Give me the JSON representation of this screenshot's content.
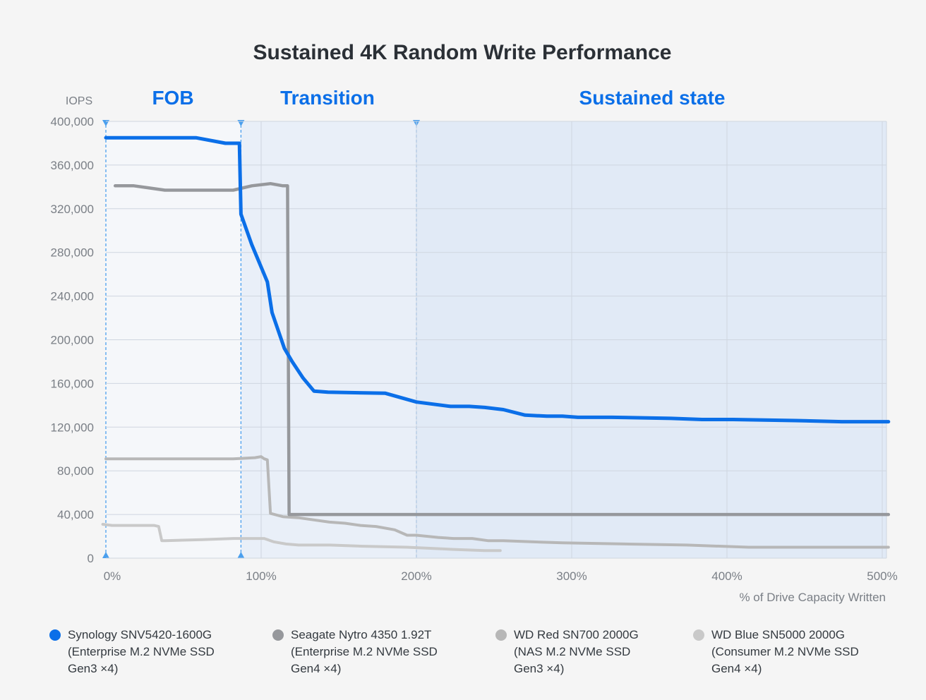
{
  "chart_data": {
    "type": "line",
    "title": "Sustained 4K Random Write Performance",
    "ylabel": "IOPS",
    "xlabel": "% of Drive Capacity Written",
    "xlim": [
      -4,
      504
    ],
    "ylim": [
      0,
      400000
    ],
    "x_ticks": [
      0,
      100,
      200,
      300,
      400,
      500
    ],
    "x_tick_labels": [
      "0%",
      "100%",
      "200%",
      "300%",
      "400%",
      "500%"
    ],
    "y_ticks": [
      0,
      40000,
      80000,
      120000,
      160000,
      200000,
      240000,
      280000,
      320000,
      360000,
      400000
    ],
    "y_tick_labels": [
      "0",
      "40,000",
      "80,000",
      "120,000",
      "160,000",
      "200,000",
      "240,000",
      "280,000",
      "320,000",
      "360,000",
      "400,000"
    ],
    "phases": [
      {
        "name": "FOB",
        "start": 0,
        "end": 87
      },
      {
        "name": "Transition",
        "start": 87,
        "end": 200
      },
      {
        "name": "Sustained state",
        "start": 200,
        "end": 504
      }
    ],
    "series": [
      {
        "name": "Synology SNV5420-1600G",
        "subtitle": [
          "(Enterprise M.2 NVMe SSD",
          "Gen3 ×4)"
        ],
        "color": "#0b6fe8",
        "x": [
          0,
          58,
          77,
          86,
          87,
          94,
          104,
          107,
          115,
          120,
          127,
          134,
          143,
          180,
          200,
          222,
          234,
          244,
          256,
          270,
          284,
          294,
          304,
          326,
          364,
          384,
          404,
          444,
          474,
          504
        ],
        "y": [
          385000,
          385000,
          380000,
          380000,
          315000,
          287000,
          253000,
          225000,
          192000,
          180000,
          165000,
          153000,
          152000,
          151000,
          143000,
          139000,
          139000,
          138000,
          136000,
          131000,
          130000,
          130000,
          129000,
          129000,
          128000,
          127000,
          127000,
          126000,
          125000,
          125000
        ]
      },
      {
        "name": "Seagate Nytro 4350 1.92T",
        "subtitle": [
          "(Enterprise M.2 NVMe SSD",
          "Gen4 ×4)"
        ],
        "color": "#96989c",
        "x": [
          6,
          18,
          28,
          38,
          82,
          94,
          106,
          114,
          117,
          118,
          125,
          504
        ],
        "y": [
          341000,
          341000,
          339000,
          337000,
          337000,
          341000,
          343000,
          341000,
          341000,
          40000,
          40000,
          40000
        ]
      },
      {
        "name": "WD Red SN700 2000G",
        "subtitle": [
          "(NAS M.2 NVMe SSD",
          "Gen3 ×4)"
        ],
        "color": "#b7b7b7",
        "x": [
          0,
          82,
          96,
          100,
          102,
          104,
          106,
          114,
          124,
          134,
          144,
          154,
          164,
          174,
          186,
          194,
          200,
          214,
          224,
          236,
          246,
          256,
          274,
          294,
          334,
          374,
          414,
          504
        ],
        "y": [
          91000,
          91000,
          92000,
          93000,
          91000,
          90000,
          41000,
          38000,
          37000,
          35000,
          33000,
          32000,
          30000,
          29000,
          26000,
          21000,
          21000,
          19000,
          18000,
          18000,
          16000,
          16000,
          15000,
          14000,
          13000,
          12000,
          10000,
          10000
        ]
      },
      {
        "name": "WD Blue SN5000 2000G",
        "subtitle": [
          "(Consumer M.2 NVMe SSD",
          "Gen4 ×4)"
        ],
        "color": "#c9c9c9",
        "x": [
          -2,
          4,
          8,
          16,
          26,
          31,
          34,
          36,
          38,
          62,
          82,
          94,
          102,
          108,
          116,
          124,
          144,
          164,
          194,
          224,
          244,
          254
        ],
        "y": [
          31000,
          30000,
          30000,
          30000,
          30000,
          30000,
          29000,
          16000,
          16000,
          17000,
          18000,
          18000,
          18000,
          15000,
          13000,
          12000,
          12000,
          11000,
          10000,
          8000,
          7000,
          7000
        ]
      }
    ]
  }
}
